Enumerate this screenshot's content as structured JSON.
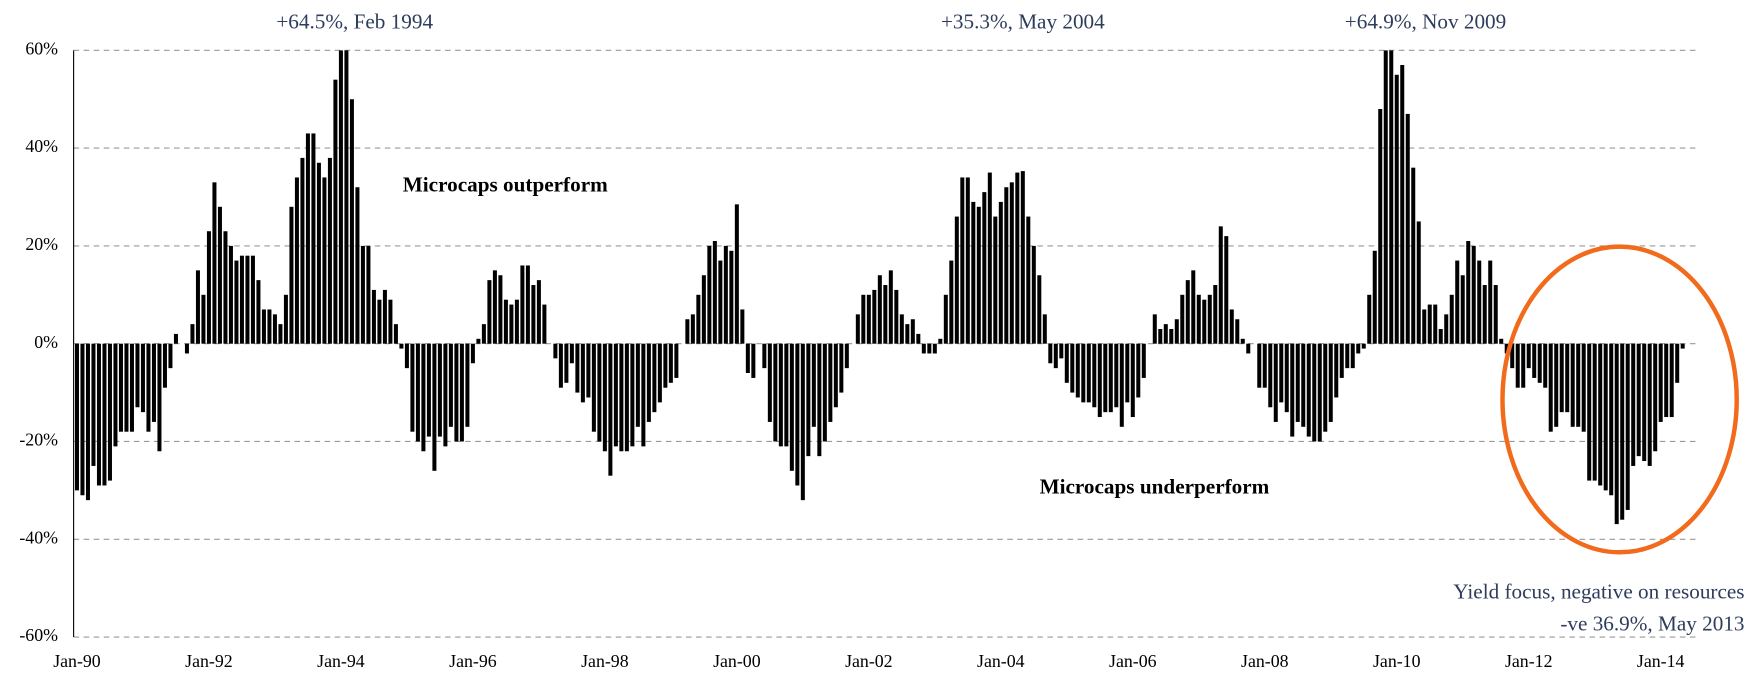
{
  "chart_data": {
    "type": "bar",
    "color": "#000000",
    "annotations": [
      "+64.5%, Feb 1994",
      "+35.3%, May 2004",
      "+64.9%, Nov 2009",
      "Microcaps outperform",
      "Microcaps underperform",
      "Yield focus, negative on resources",
      "-ve 36.9%, May 2013"
    ],
    "ylim": [
      -60,
      60
    ],
    "yticks": [
      {
        "value": -60,
        "label": "-60%"
      },
      {
        "value": -40,
        "label": "-40%"
      },
      {
        "value": -20,
        "label": "-20%"
      },
      {
        "value": 0,
        "label": "0%"
      },
      {
        "value": 20,
        "label": "20%"
      },
      {
        "value": 40,
        "label": "40%"
      },
      {
        "value": 60,
        "label": "60%"
      }
    ],
    "grid": true,
    "categories": [
      "Jan-90",
      null,
      null,
      null,
      null,
      null,
      null,
      null,
      null,
      null,
      null,
      null,
      null,
      null,
      null,
      null,
      null,
      null,
      null,
      null,
      null,
      null,
      null,
      null,
      "Jan-92",
      null,
      null,
      null,
      null,
      null,
      null,
      null,
      null,
      null,
      null,
      null,
      null,
      null,
      null,
      null,
      null,
      null,
      null,
      null,
      null,
      null,
      null,
      null,
      "Jan-94",
      null,
      null,
      null,
      null,
      null,
      null,
      null,
      null,
      null,
      null,
      null,
      null,
      null,
      null,
      null,
      null,
      null,
      null,
      null,
      null,
      null,
      null,
      null,
      "Jan-96",
      null,
      null,
      null,
      null,
      null,
      null,
      null,
      null,
      null,
      null,
      null,
      null,
      null,
      null,
      null,
      null,
      null,
      null,
      null,
      null,
      null,
      null,
      null,
      "Jan-98",
      null,
      null,
      null,
      null,
      null,
      null,
      null,
      null,
      null,
      null,
      null,
      null,
      null,
      null,
      null,
      null,
      null,
      null,
      null,
      null,
      null,
      null,
      null,
      "Jan-00",
      null,
      null,
      null,
      null,
      null,
      null,
      null,
      null,
      null,
      null,
      null,
      null,
      null,
      null,
      null,
      null,
      null,
      null,
      null,
      null,
      null,
      null,
      null,
      "Jan-02",
      null,
      null,
      null,
      null,
      null,
      null,
      null,
      null,
      null,
      null,
      null,
      null,
      null,
      null,
      null,
      null,
      null,
      null,
      null,
      null,
      null,
      null,
      null,
      "Jan-04",
      null,
      null,
      null,
      null,
      null,
      null,
      null,
      null,
      null,
      null,
      null,
      null,
      null,
      null,
      null,
      null,
      null,
      null,
      null,
      null,
      null,
      null,
      null,
      "Jan-06",
      null,
      null,
      null,
      null,
      null,
      null,
      null,
      null,
      null,
      null,
      null,
      null,
      null,
      null,
      null,
      null,
      null,
      null,
      null,
      null,
      null,
      null,
      null,
      "Jan-08",
      null,
      null,
      null,
      null,
      null,
      null,
      null,
      null,
      null,
      null,
      null,
      null,
      null,
      null,
      null,
      null,
      null,
      null,
      null,
      null,
      null,
      null,
      null,
      "Jan-10",
      null,
      null,
      null,
      null,
      null,
      null,
      null,
      null,
      null,
      null,
      null,
      null,
      null,
      null,
      null,
      null,
      null,
      null,
      null,
      null,
      null,
      null,
      null,
      "Jan-12",
      null,
      null,
      null,
      null,
      null,
      null,
      null,
      null,
      null,
      null,
      null,
      null,
      null,
      null,
      null,
      null,
      null,
      null,
      null,
      null,
      null,
      null,
      null,
      "Jan-14",
      null,
      null,
      null,
      null
    ],
    "values": [
      -30,
      -31,
      -32,
      -25,
      -29,
      -29,
      -28,
      -21,
      -18,
      -18,
      -18,
      -13,
      -14,
      -18,
      -16,
      -22,
      -9,
      -5,
      2,
      0,
      -2,
      4,
      15,
      10,
      23,
      33,
      28,
      23,
      20,
      17,
      18,
      18,
      18,
      13,
      7,
      7,
      6,
      4,
      10,
      28,
      34,
      38,
      43,
      43,
      37,
      34,
      38,
      54,
      60.5,
      64.5,
      50,
      32,
      20,
      20,
      11,
      9,
      11,
      9,
      4,
      -1,
      -5,
      -18,
      -20,
      -22,
      -19,
      -26,
      -19,
      -21,
      -17,
      -20,
      -20,
      -17,
      -4,
      1,
      4,
      13,
      15,
      14,
      9,
      8,
      9,
      16,
      16,
      12,
      13,
      8,
      0,
      -3,
      -9,
      -8,
      -4,
      -10,
      -12,
      -11,
      -18,
      -20,
      -22,
      -27,
      -21,
      -22,
      -22,
      -21,
      -17,
      -21,
      -16,
      -14,
      -12,
      -9,
      -8,
      -7,
      0,
      5,
      6,
      10,
      14,
      20,
      21,
      17,
      20,
      19,
      28.5,
      7,
      -6,
      -7,
      0,
      -5,
      -16,
      -20,
      -21,
      -21,
      -26,
      -29,
      -32,
      -23,
      -17,
      -23,
      -20,
      -16,
      -13,
      -10,
      -5,
      0,
      6,
      10,
      10,
      11,
      14,
      12,
      15,
      11,
      6,
      4,
      5,
      2,
      -2,
      -2,
      -2,
      1,
      10,
      17,
      26,
      34,
      34,
      29,
      28,
      31,
      35,
      26,
      29,
      32,
      33,
      35,
      35.3,
      26,
      20,
      14,
      6,
      -4,
      -5,
      -3,
      -8,
      -10,
      -11,
      -12,
      -12,
      -13,
      -15,
      -14,
      -14,
      -13,
      -17,
      -12,
      -15,
      -11,
      -7,
      0,
      6,
      3,
      4,
      3,
      5,
      10,
      13,
      15,
      10,
      9,
      10,
      12,
      24,
      22,
      7,
      5,
      1,
      -2,
      0,
      -9,
      -9,
      -13,
      -16,
      -12,
      -14,
      -19,
      -16,
      -17,
      -19,
      -20,
      -20,
      -18,
      -16,
      -11,
      -7,
      -5,
      -5,
      -2,
      -1,
      10,
      19,
      48,
      64.9,
      60,
      55,
      57,
      47,
      36,
      25,
      7,
      8,
      8,
      3,
      6,
      10,
      17,
      14,
      21,
      20,
      17,
      12,
      17,
      12,
      1,
      -2,
      -5,
      -9,
      -9,
      -5,
      -7,
      -8,
      -9,
      -18,
      -17,
      -14,
      -14,
      -17,
      -17,
      -18,
      -28,
      -28,
      -29,
      -30,
      -31,
      -36.9,
      -36,
      -34,
      -25,
      -23,
      -24,
      -25,
      -22,
      -16,
      -15,
      -15,
      -8,
      -1
    ]
  }
}
